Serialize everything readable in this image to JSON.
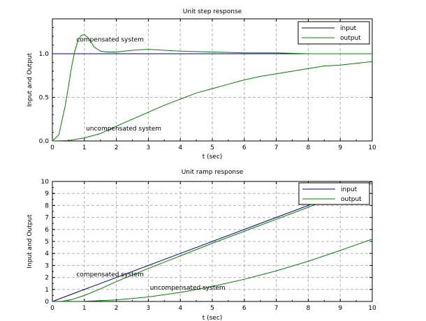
{
  "chart_data": [
    {
      "type": "line",
      "title": "Unit step response",
      "xlabel": "t (sec)",
      "ylabel": "Input and Output",
      "xlim": [
        0,
        10
      ],
      "ylim": [
        0,
        1.4
      ],
      "grid": true,
      "legend_position": "top-right",
      "x_ticks": [
        "0",
        "1",
        "2",
        "3",
        "4",
        "5",
        "6",
        "7",
        "8",
        "9",
        "10"
      ],
      "x_tick_values": [
        0,
        1,
        2,
        3,
        4,
        5,
        6,
        7,
        8,
        9,
        10
      ],
      "y_ticks": [
        "0.0",
        "0.5",
        "1.0"
      ],
      "y_tick_values": [
        0,
        0.5,
        1.0
      ],
      "series": [
        {
          "name": "input",
          "color": "#000080",
          "x": [
            0,
            10
          ],
          "y": [
            1,
            1
          ]
        },
        {
          "name": "output",
          "color": "#008000",
          "x": [
            0,
            0.2,
            0.4,
            0.5,
            0.6,
            0.7,
            0.8,
            0.9,
            1.0,
            1.1,
            1.2,
            1.3,
            1.5,
            1.7,
            2.0,
            2.5,
            3.0,
            3.5,
            4.0,
            5.0,
            6.0,
            7.0,
            8.0,
            10.0
          ],
          "y": [
            0,
            0.07,
            0.4,
            0.62,
            0.85,
            1.03,
            1.15,
            1.21,
            1.22,
            1.19,
            1.14,
            1.08,
            1.03,
            1.02,
            1.02,
            1.04,
            1.05,
            1.04,
            1.03,
            1.02,
            1.01,
            1.01,
            1.0,
            1.0
          ]
        },
        {
          "name": "output",
          "color": "#008000",
          "x": [
            0,
            0.5,
            1.0,
            1.5,
            2.0,
            2.5,
            3.0,
            3.5,
            4.0,
            4.5,
            5.0,
            5.5,
            6.0,
            6.5,
            7.0,
            7.5,
            8.0,
            8.5,
            9.0,
            9.5,
            10.0
          ],
          "y": [
            0,
            0.005,
            0.035,
            0.085,
            0.17,
            0.25,
            0.33,
            0.41,
            0.48,
            0.55,
            0.6,
            0.65,
            0.7,
            0.74,
            0.77,
            0.8,
            0.83,
            0.86,
            0.87,
            0.89,
            0.91
          ]
        }
      ],
      "legend": [
        {
          "label": "input",
          "color": "#000080"
        },
        {
          "label": "output",
          "color": "#008000"
        }
      ],
      "annotations": [
        {
          "text": "compensated system",
          "x": 0.75,
          "y": 1.14
        },
        {
          "text": "uncompensated system",
          "x": 1.05,
          "y": 0.12
        }
      ]
    },
    {
      "type": "line",
      "title": "Unit ramp response",
      "xlabel": "t (sec)",
      "ylabel": "Input and Output",
      "xlim": [
        0,
        10
      ],
      "ylim": [
        0,
        10
      ],
      "grid": true,
      "legend_position": "top-right",
      "x_ticks": [
        "0",
        "1",
        "2",
        "3",
        "4",
        "5",
        "6",
        "7",
        "8",
        "9",
        "10"
      ],
      "x_tick_values": [
        0,
        1,
        2,
        3,
        4,
        5,
        6,
        7,
        8,
        9,
        10
      ],
      "y_ticks": [
        "0",
        "1",
        "2",
        "3",
        "4",
        "5",
        "6",
        "7",
        "8",
        "9",
        "10"
      ],
      "y_tick_values": [
        0,
        1,
        2,
        3,
        4,
        5,
        6,
        7,
        8,
        9,
        10
      ],
      "series": [
        {
          "name": "input",
          "color": "#000080",
          "x": [
            0,
            10
          ],
          "y": [
            0,
            10
          ]
        },
        {
          "name": "output",
          "color": "#008000",
          "x": [
            0,
            0.3,
            0.6,
            1.0,
            1.5,
            2.0,
            3.0,
            4.0,
            5.0,
            6.0,
            7.0,
            8.0,
            9.0,
            10.0
          ],
          "y": [
            0,
            0.02,
            0.15,
            0.5,
            1.05,
            1.65,
            2.75,
            3.8,
            4.85,
            5.85,
            6.85,
            7.85,
            8.85,
            9.85
          ]
        },
        {
          "name": "output",
          "color": "#008000",
          "x": [
            0,
            1.0,
            2.0,
            3.0,
            4.0,
            5.0,
            6.0,
            7.0,
            8.0,
            9.0,
            10.0
          ],
          "y": [
            0,
            0.02,
            0.13,
            0.38,
            0.75,
            1.25,
            1.85,
            2.55,
            3.35,
            4.25,
            5.2
          ]
        }
      ],
      "legend": [
        {
          "label": "input",
          "color": "#000080"
        },
        {
          "label": "output",
          "color": "#008000"
        }
      ],
      "annotations": [
        {
          "text": "compensated system",
          "x": 0.75,
          "y": 2.1
        },
        {
          "text": "uncompensated system",
          "x": 3.05,
          "y": 1.0
        }
      ]
    }
  ]
}
